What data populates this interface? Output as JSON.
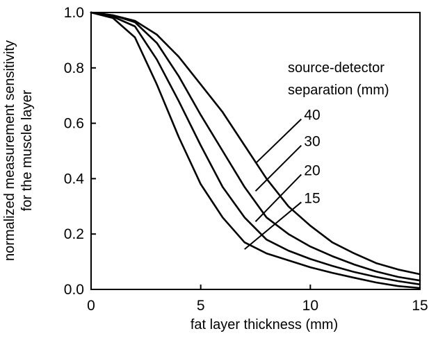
{
  "chart_data": {
    "type": "line",
    "xlabel": "fat layer thickness (mm)",
    "ylabel_lines": [
      "normalized measurement sensitivity",
      "for the muscle layer"
    ],
    "xlim": [
      0,
      15
    ],
    "ylim": [
      0,
      1
    ],
    "xticks": [
      0,
      5,
      10,
      15
    ],
    "yticks": [
      0.0,
      0.2,
      0.4,
      0.6,
      0.8,
      1.0
    ],
    "ytick_labels": [
      "0.0",
      "0.2",
      "0.4",
      "0.6",
      "0.8",
      "1.0"
    ],
    "xtick_labels": [
      "0",
      "5",
      "10",
      "15"
    ],
    "grid": false,
    "legend_title_lines": [
      "source-detector",
      "separation (mm)"
    ],
    "series": [
      {
        "name": "15",
        "x": [
          0,
          1,
          2,
          3,
          4,
          5,
          6,
          7,
          8,
          9,
          10,
          11,
          12,
          13,
          14,
          15
        ],
        "y": [
          1.0,
          0.98,
          0.91,
          0.74,
          0.55,
          0.38,
          0.26,
          0.17,
          0.13,
          0.105,
          0.08,
          0.06,
          0.042,
          0.025,
          0.012,
          0.005
        ]
      },
      {
        "name": "20",
        "x": [
          0,
          1,
          2,
          3,
          4,
          5,
          6,
          7,
          8,
          9,
          10,
          11,
          12,
          13,
          14,
          15
        ],
        "y": [
          1.0,
          0.985,
          0.95,
          0.83,
          0.68,
          0.52,
          0.37,
          0.26,
          0.18,
          0.14,
          0.11,
          0.085,
          0.063,
          0.045,
          0.03,
          0.018
        ]
      },
      {
        "name": "30",
        "x": [
          0,
          1,
          2,
          3,
          4,
          5,
          6,
          7,
          8,
          9,
          10,
          11,
          12,
          13,
          14,
          15
        ],
        "y": [
          1.0,
          0.99,
          0.965,
          0.89,
          0.77,
          0.63,
          0.5,
          0.37,
          0.26,
          0.2,
          0.155,
          0.12,
          0.09,
          0.065,
          0.045,
          0.032
        ]
      },
      {
        "name": "40",
        "x": [
          0,
          1,
          2,
          3,
          4,
          5,
          6,
          7,
          8,
          9,
          10,
          11,
          12,
          13,
          14,
          15
        ],
        "y": [
          1.0,
          0.99,
          0.97,
          0.92,
          0.84,
          0.74,
          0.64,
          0.52,
          0.4,
          0.3,
          0.23,
          0.17,
          0.13,
          0.095,
          0.072,
          0.055
        ]
      }
    ],
    "curve_labels": [
      {
        "series": "40",
        "text": "40",
        "anchor_x": 7.5,
        "anchor_y": 0.455,
        "label_x": 9.65,
        "label_y": 0.62
      },
      {
        "series": "30",
        "text": "30",
        "anchor_x": 7.5,
        "anchor_y": 0.355,
        "label_x": 9.65,
        "label_y": 0.525
      },
      {
        "series": "20",
        "text": "20",
        "anchor_x": 7.5,
        "anchor_y": 0.245,
        "label_x": 9.65,
        "label_y": 0.42
      },
      {
        "series": "15",
        "text": "15",
        "anchor_x": 7.0,
        "anchor_y": 0.145,
        "label_x": 9.65,
        "label_y": 0.32
      }
    ]
  }
}
